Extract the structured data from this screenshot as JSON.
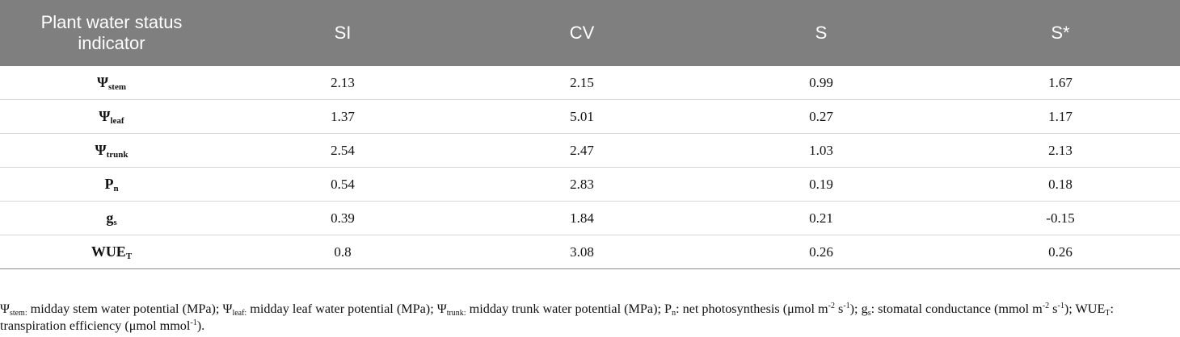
{
  "table": {
    "headers": [
      "Plant water status indicator",
      "SI",
      "CV",
      "S",
      "S*"
    ],
    "rows": [
      {
        "symbol": "Ψ",
        "sub": "stem",
        "values": [
          "2.13",
          "2.15",
          "0.99",
          "1.67"
        ]
      },
      {
        "symbol": "Ψ",
        "sub": "leaf",
        "values": [
          "1.37",
          "5.01",
          "0.27",
          "1.17"
        ]
      },
      {
        "symbol": "Ψ",
        "sub": "trunk",
        "values": [
          "2.54",
          "2.47",
          "1.03",
          "2.13"
        ]
      },
      {
        "symbol": "P",
        "sub": "n",
        "values": [
          "0.54",
          "2.83",
          "0.19",
          "0.18"
        ]
      },
      {
        "symbol": "g",
        "sub": "s",
        "values": [
          "0.39",
          "1.84",
          "0.21",
          "-0.15"
        ]
      },
      {
        "symbol": "WUE",
        "sub": "T",
        "values": [
          "0.8",
          "3.08",
          "0.26",
          "0.26"
        ]
      }
    ]
  },
  "footnote": {
    "psi_symbol": "Ψ",
    "stem_sub": "stem:",
    "stem_desc": " midday stem water potential (MPa); ",
    "leaf_sub": "leaf:",
    "leaf_desc": " midday leaf water potential (MPa); ",
    "trunk_sub": "trunk:",
    "trunk_desc": " midday trunk water potential (MPa); ",
    "pn_symbol": "P",
    "pn_sub": "n",
    "pn_desc_a": ": net photosynthesis (μmol m",
    "pn_sup1": "-2",
    "pn_desc_b": " s",
    "pn_sup2": "-1",
    "pn_desc_c": "); ",
    "gs_symbol": "g",
    "gs_sub": "s",
    "gs_desc_a": ":  stomatal conductance (mmol m",
    "gs_sup1": "-2",
    "gs_desc_b": " s",
    "gs_sup2": "-1",
    "gs_desc_c": "); ",
    "wue_symbol": "WUE",
    "wue_sub": "T",
    "wue_desc_a": ": transpiration efficiency (μmol mmol",
    "wue_sup": "-1",
    "wue_desc_b": ")."
  }
}
